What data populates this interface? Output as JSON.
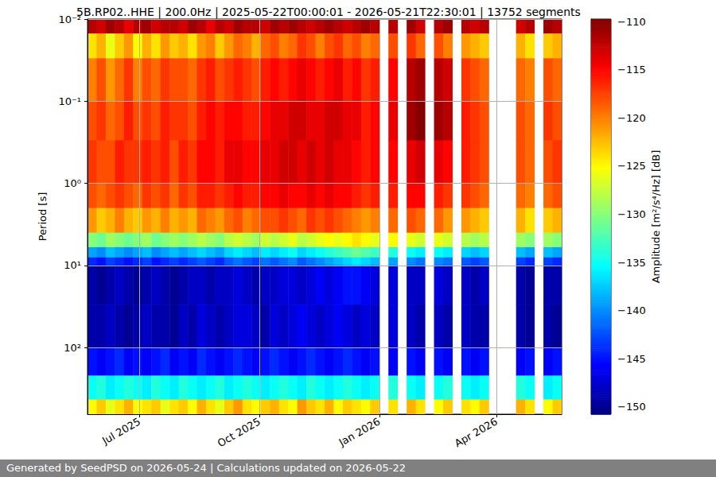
{
  "chart_data": {
    "type": "heatmap",
    "title": "5B.RP02..HHE | 200.0Hz | 2025-05-22T00:00:01 - 2026-05-21T22:30:01 | 13752 segments",
    "y_label": "Period [s]",
    "annotations": [
      "Generated by SeedPSD on 2026-05-24 | Calculations updated on 2026-05-22"
    ],
    "log": "y",
    "grid": true,
    "xlim": [
      "2025-05-22",
      "2026-05-21"
    ],
    "xticks": [
      {
        "value": "2025-07-01",
        "label": "Jul 2025"
      },
      {
        "value": "2025-10-01",
        "label": "Oct 2025"
      },
      {
        "value": "2026-01-01",
        "label": "Jan 2026"
      },
      {
        "value": "2026-04-01",
        "label": "Apr 2026"
      }
    ],
    "ylim": [
      0.01,
      650
    ],
    "yticks": [
      {
        "value": 0.01,
        "label": "10⁻²"
      },
      {
        "value": 0.1,
        "label": "10⁻¹"
      },
      {
        "value": 1,
        "label": "10⁰"
      },
      {
        "value": 10,
        "label": "10¹"
      },
      {
        "value": 100,
        "label": "10²"
      }
    ],
    "x_bins": [
      "2025-05-22",
      "2025-05-29",
      "2025-06-05",
      "2025-06-12",
      "2025-06-19",
      "2025-06-26",
      "2025-07-03",
      "2025-07-10",
      "2025-07-17",
      "2025-07-24",
      "2025-07-31",
      "2025-08-07",
      "2025-08-14",
      "2025-08-21",
      "2025-08-28",
      "2025-09-04",
      "2025-09-11",
      "2025-09-18",
      "2025-09-25",
      "2025-10-02",
      "2025-10-09",
      "2025-10-16",
      "2025-10-23",
      "2025-10-30",
      "2025-11-06",
      "2025-11-13",
      "2025-11-20",
      "2025-11-27",
      "2025-12-04",
      "2025-12-11",
      "2025-12-18",
      "2025-12-25",
      "2026-01-01",
      "2026-01-08",
      "2026-01-15",
      "2026-01-22",
      "2026-01-29",
      "2026-02-05",
      "2026-02-12",
      "2026-02-19",
      "2026-02-26",
      "2026-03-05",
      "2026-03-12",
      "2026-03-19",
      "2026-03-26",
      "2026-04-02",
      "2026-04-09",
      "2026-04-16",
      "2026-04-23",
      "2026-04-30",
      "2026-05-07",
      "2026-05-14",
      "2026-05-21"
    ],
    "y_bins": [
      0.01,
      0.015,
      0.03,
      0.1,
      0.3,
      1,
      2,
      4,
      6,
      8,
      10,
      30,
      100,
      220,
      430,
      650
    ],
    "cells": [
      [
        -112,
        -113,
        -111,
        -112,
        -114,
        -112,
        -111,
        -113,
        -112,
        -112,
        -113,
        -111,
        -112,
        -114,
        -112,
        -113,
        -111,
        -112,
        -112,
        -113,
        -111,
        -112,
        -111,
        -112,
        -113,
        -112,
        -111,
        -112,
        -113,
        -112,
        -111,
        -112,
        null,
        -112,
        null,
        -111,
        -113,
        null,
        -112,
        -111,
        null,
        -112,
        -113,
        -112,
        null,
        null,
        null,
        -113,
        -112,
        null,
        -111,
        -112
      ],
      [
        -124,
        -122,
        -126,
        -123,
        -121,
        -125,
        -122,
        -124,
        -121,
        -123,
        -122,
        -124,
        -121,
        -120,
        -123,
        -121,
        -119,
        -120,
        -122,
        -119,
        -118,
        -120,
        -119,
        -117,
        -118,
        -120,
        -118,
        -117,
        -119,
        -118,
        -120,
        -119,
        null,
        -118,
        null,
        -117,
        -119,
        null,
        -118,
        -120,
        null,
        -121,
        -122,
        -123,
        null,
        null,
        null,
        -122,
        -124,
        null,
        -123,
        -122
      ],
      [
        -120,
        -118,
        -121,
        -119,
        -117,
        -120,
        -118,
        -119,
        -117,
        -118,
        -118,
        -119,
        -117,
        -116,
        -118,
        -117,
        -116,
        -117,
        -118,
        -116,
        -115,
        -116,
        -115,
        -114,
        -115,
        -116,
        -115,
        -114,
        -116,
        -115,
        -117,
        -116,
        null,
        -115,
        null,
        -112,
        -111,
        null,
        -112,
        -113,
        null,
        -117,
        -118,
        -119,
        null,
        null,
        null,
        -119,
        -120,
        null,
        -118,
        -119
      ],
      [
        -118,
        -117,
        -119,
        -118,
        -116,
        -118,
        -117,
        -118,
        -116,
        -117,
        -117,
        -118,
        -116,
        -115,
        -116,
        -115,
        -115,
        -116,
        -116,
        -115,
        -114,
        -114,
        -113,
        -113,
        -114,
        -114,
        -113,
        -113,
        -114,
        -114,
        -116,
        -115,
        null,
        -114,
        null,
        -111,
        -110,
        null,
        -111,
        -112,
        null,
        -116,
        -117,
        -118,
        null,
        null,
        null,
        -118,
        -119,
        null,
        -117,
        -118
      ],
      [
        -117,
        -118,
        -118,
        -116,
        -117,
        -117,
        -116,
        -117,
        -116,
        -118,
        -116,
        -117,
        -115,
        -115,
        -116,
        -114,
        -114,
        -115,
        -115,
        -114,
        -114,
        -113,
        -113,
        -114,
        -113,
        -114,
        -113,
        -114,
        -114,
        -115,
        -116,
        -115,
        null,
        -115,
        null,
        -114,
        -113,
        null,
        -114,
        -115,
        null,
        -116,
        -117,
        -118,
        null,
        null,
        null,
        -118,
        -119,
        null,
        -118,
        -117
      ],
      [
        -118,
        -119,
        -118,
        -117,
        -118,
        -119,
        -117,
        -118,
        -117,
        -119,
        -117,
        -118,
        -116,
        -116,
        -117,
        -116,
        -115,
        -116,
        -116,
        -115,
        -115,
        -114,
        -115,
        -115,
        -114,
        -115,
        -114,
        -115,
        -115,
        -116,
        -117,
        -116,
        null,
        -116,
        null,
        -115,
        -115,
        null,
        -116,
        -117,
        null,
        -117,
        -118,
        -119,
        null,
        null,
        null,
        -119,
        -120,
        null,
        -119,
        -118
      ],
      [
        -121,
        -123,
        -122,
        -120,
        -122,
        -123,
        -121,
        -122,
        -120,
        -122,
        -121,
        -122,
        -119,
        -120,
        -121,
        -119,
        -118,
        -120,
        -119,
        -118,
        -118,
        -117,
        -118,
        -119,
        -117,
        -118,
        -117,
        -118,
        -119,
        -120,
        -121,
        -120,
        null,
        -119,
        null,
        -118,
        -119,
        null,
        -119,
        -121,
        null,
        -121,
        -122,
        -123,
        null,
        null,
        null,
        -122,
        -124,
        null,
        -123,
        -122
      ],
      [
        -130,
        -131,
        -129,
        -130,
        -131,
        -130,
        -129,
        -131,
        -130,
        -129,
        -130,
        -129,
        -128,
        -129,
        -130,
        -128,
        -127,
        -128,
        -129,
        -127,
        -128,
        -127,
        -126,
        -128,
        -127,
        -126,
        -125,
        -126,
        -125,
        -124,
        -125,
        -126,
        null,
        -125,
        null,
        -126,
        -127,
        null,
        -126,
        -127,
        null,
        -128,
        -129,
        -128,
        null,
        null,
        null,
        -129,
        -130,
        null,
        -129,
        -130
      ],
      [
        -139,
        -140,
        -138,
        -139,
        -140,
        -139,
        -138,
        -140,
        -139,
        -138,
        -139,
        -138,
        -137,
        -138,
        -139,
        -137,
        -136,
        -137,
        -138,
        -136,
        -137,
        -136,
        -135,
        -137,
        -136,
        -135,
        -134,
        -133,
        -132,
        -131,
        -132,
        -133,
        null,
        -134,
        null,
        -135,
        -136,
        null,
        -135,
        -136,
        null,
        -137,
        -138,
        -137,
        null,
        null,
        null,
        -138,
        -139,
        null,
        -138,
        -139
      ],
      [
        -144,
        -145,
        -143,
        -144,
        -145,
        -144,
        -143,
        -145,
        -144,
        -143,
        -144,
        -143,
        -142,
        -143,
        -144,
        -142,
        -141,
        -142,
        -143,
        -141,
        -142,
        -141,
        -140,
        -142,
        -141,
        -140,
        -139,
        -138,
        -137,
        -136,
        -137,
        -138,
        null,
        -139,
        null,
        -140,
        -141,
        null,
        -140,
        -141,
        null,
        -142,
        -143,
        -142,
        null,
        null,
        null,
        -143,
        -144,
        null,
        -143,
        -144
      ],
      [
        -149,
        -150,
        -149,
        -148,
        -149,
        -150,
        -149,
        -148,
        -149,
        -150,
        -149,
        -148,
        -148,
        -149,
        -148,
        -148,
        -147,
        -148,
        -149,
        -148,
        -148,
        -147,
        -147,
        -148,
        -147,
        -146,
        -147,
        -146,
        -145,
        -145,
        -146,
        -147,
        null,
        -147,
        null,
        -148,
        -148,
        null,
        -147,
        -148,
        null,
        -148,
        -149,
        -148,
        null,
        null,
        null,
        -149,
        -150,
        null,
        -149,
        -149
      ],
      [
        -149,
        -149,
        -148,
        -149,
        -150,
        -149,
        -148,
        -149,
        -149,
        -150,
        -148,
        -149,
        -147,
        -148,
        -149,
        -148,
        -147,
        -147,
        -148,
        -149,
        -147,
        -148,
        -147,
        -146,
        -147,
        -148,
        -147,
        -146,
        -147,
        -148,
        -147,
        -148,
        null,
        -147,
        null,
        -148,
        -149,
        null,
        -148,
        -149,
        null,
        -148,
        -149,
        -149,
        null,
        null,
        null,
        -149,
        -150,
        null,
        -149,
        -150
      ],
      [
        -145,
        -146,
        -145,
        -144,
        -146,
        -145,
        -146,
        -145,
        -144,
        -146,
        -145,
        -146,
        -144,
        -145,
        -146,
        -145,
        -144,
        -145,
        -146,
        -145,
        -144,
        -145,
        -146,
        -145,
        -144,
        -145,
        -146,
        -145,
        -144,
        -145,
        -146,
        -145,
        null,
        -146,
        null,
        -145,
        -146,
        null,
        -145,
        -146,
        null,
        -145,
        -146,
        -145,
        null,
        null,
        null,
        -146,
        -145,
        null,
        -146,
        -145
      ],
      [
        -135,
        -134,
        -136,
        -135,
        -134,
        -135,
        -136,
        -134,
        -135,
        -136,
        -134,
        -135,
        -136,
        -135,
        -134,
        -136,
        -135,
        -134,
        -135,
        -136,
        -135,
        -134,
        -135,
        -136,
        -134,
        -135,
        -136,
        -135,
        -134,
        -135,
        -136,
        -135,
        null,
        -134,
        null,
        -135,
        -136,
        null,
        -135,
        -134,
        null,
        -135,
        -136,
        -135,
        null,
        null,
        null,
        -134,
        -135,
        null,
        -136,
        -135
      ],
      [
        -125,
        -123,
        -126,
        -124,
        -122,
        -125,
        -124,
        -123,
        -126,
        -124,
        -123,
        -125,
        -122,
        -124,
        -126,
        -123,
        -121,
        -124,
        -125,
        -123,
        -122,
        -124,
        -125,
        -121,
        -123,
        -124,
        -122,
        -125,
        -123,
        -124,
        -125,
        -123,
        null,
        -124,
        null,
        -122,
        -124,
        null,
        -125,
        -123,
        null,
        -124,
        -125,
        -123,
        null,
        null,
        null,
        -122,
        -124,
        null,
        -125,
        -123
      ]
    ],
    "colorbar": {
      "label": "Amplitude [m²/s⁴/Hz] [dB]",
      "range": [
        -150.75,
        -109.75
      ],
      "ticks": [
        {
          "value": -150,
          "label": "−150"
        },
        {
          "value": -145,
          "label": "−145"
        },
        {
          "value": -140,
          "label": "−140"
        },
        {
          "value": -135,
          "label": "−135"
        },
        {
          "value": -130,
          "label": "−130"
        },
        {
          "value": -125,
          "label": "−125"
        },
        {
          "value": -120,
          "label": "−120"
        },
        {
          "value": -115,
          "label": "−115"
        },
        {
          "value": -110,
          "label": "−110"
        }
      ]
    }
  }
}
